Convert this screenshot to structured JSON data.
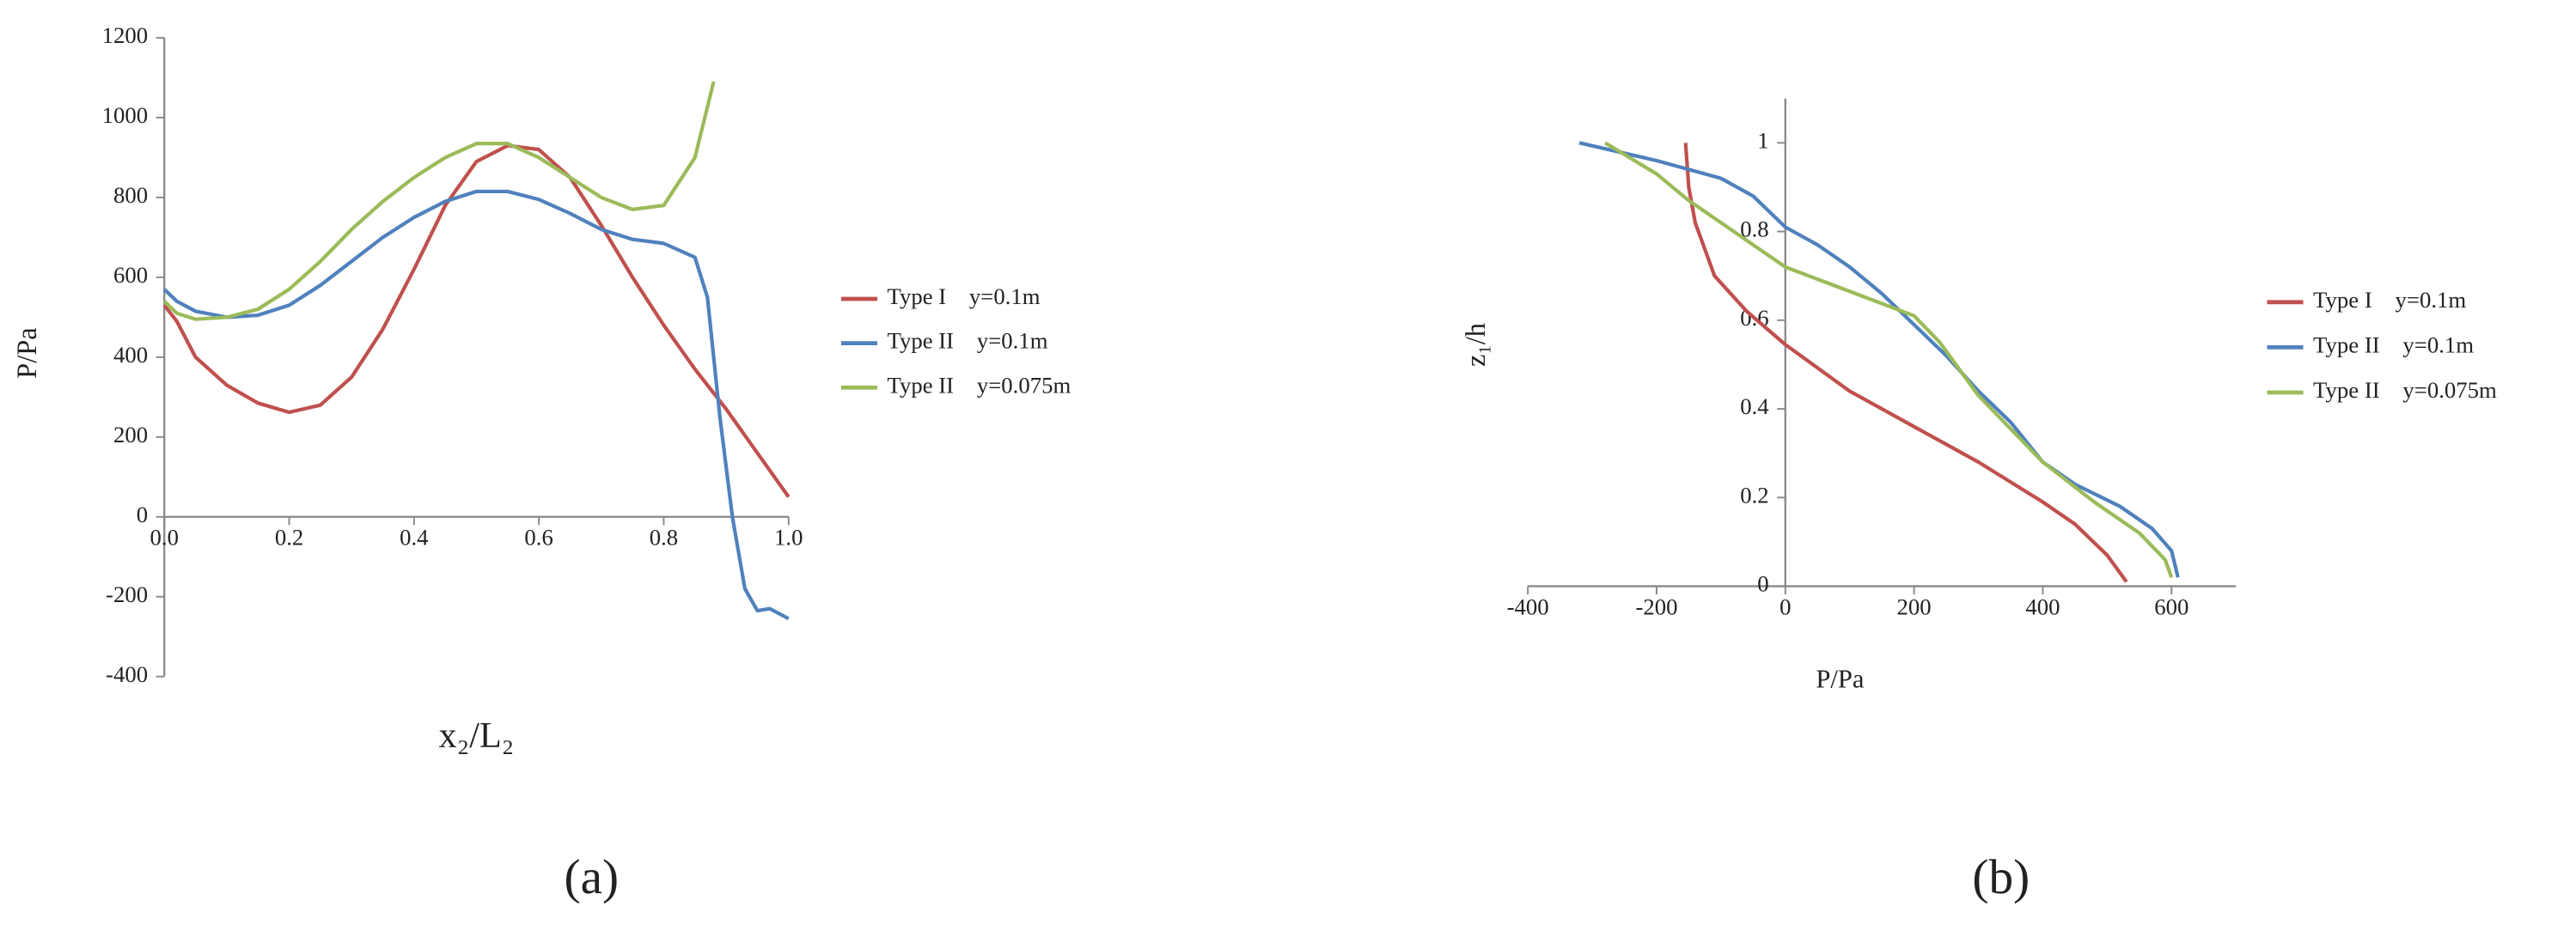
{
  "chart_data": [
    {
      "type": "line",
      "panel_label": "(a)",
      "x_label": "x₂/L₂",
      "y_label": "P/Pa",
      "xlim": [
        0,
        1
      ],
      "xticks": [
        {
          "value": 0,
          "label": "0.0"
        },
        0.2,
        0.4,
        0.6,
        0.8,
        {
          "value": 1,
          "label": "1.0"
        }
      ],
      "ylim": [
        -400,
        1200
      ],
      "yticks": [
        -400,
        -200,
        0,
        200,
        400,
        600,
        800,
        1000,
        1200
      ],
      "grid": false,
      "legend": "right",
      "series": [
        {
          "name": "Type I    y=0.1m",
          "color": "#c0504d",
          "x": [
            0,
            0.02,
            0.05,
            0.1,
            0.15,
            0.2,
            0.25,
            0.3,
            0.35,
            0.4,
            0.45,
            0.5,
            0.55,
            0.6,
            0.65,
            0.7,
            0.75,
            0.8,
            0.85,
            0.9,
            0.95,
            1.0
          ],
          "values": [
            530,
            490,
            400,
            330,
            285,
            262,
            280,
            350,
            470,
            620,
            780,
            890,
            930,
            920,
            850,
            730,
            600,
            480,
            370,
            270,
            160,
            50
          ]
        },
        {
          "name": "Type II    y=0.1m",
          "color": "#4f81bd",
          "x": [
            0,
            0.02,
            0.05,
            0.1,
            0.15,
            0.2,
            0.25,
            0.3,
            0.35,
            0.4,
            0.45,
            0.5,
            0.55,
            0.6,
            0.65,
            0.7,
            0.75,
            0.8,
            0.85,
            0.87,
            0.89,
            0.91,
            0.93,
            0.95,
            0.97,
            1.0
          ],
          "values": [
            570,
            540,
            515,
            500,
            505,
            530,
            580,
            640,
            700,
            750,
            790,
            815,
            815,
            795,
            760,
            720,
            695,
            685,
            650,
            550,
            250,
            0,
            -180,
            -235,
            -230,
            -255
          ]
        },
        {
          "name": "Type II    y=0.075m",
          "color": "#9bbb59",
          "x": [
            0,
            0.02,
            0.05,
            0.1,
            0.15,
            0.2,
            0.25,
            0.3,
            0.35,
            0.4,
            0.45,
            0.5,
            0.55,
            0.6,
            0.65,
            0.7,
            0.75,
            0.8,
            0.85,
            0.88
          ],
          "values": [
            540,
            510,
            495,
            500,
            520,
            570,
            640,
            720,
            790,
            850,
            900,
            935,
            935,
            900,
            850,
            800,
            770,
            780,
            900,
            1090
          ]
        }
      ]
    },
    {
      "type": "line",
      "panel_label": "(b)",
      "x_label": "P/Pa",
      "y_label": "z₁/h",
      "xlim": [
        -400,
        700
      ],
      "xticks": [
        -400,
        -200,
        0,
        200,
        400,
        600
      ],
      "ylim": [
        0,
        1.1
      ],
      "yticks": [
        0,
        0.2,
        0.4,
        0.6,
        0.8,
        1
      ],
      "grid": false,
      "legend": "right",
      "series": [
        {
          "name": "Type I    y=0.1m",
          "color": "#c0504d",
          "x": [
            -155,
            -150,
            -140,
            -110,
            -60,
            0,
            100,
            200,
            300,
            400,
            450,
            500,
            530
          ],
          "values": [
            1.0,
            0.9,
            0.82,
            0.7,
            0.62,
            0.545,
            0.44,
            0.36,
            0.28,
            0.19,
            0.14,
            0.07,
            0.01
          ]
        },
        {
          "name": "Type II    y=0.1m",
          "color": "#4f81bd",
          "x": [
            -320,
            -200,
            -100,
            -50,
            0,
            50,
            100,
            150,
            200,
            250,
            300,
            350,
            400,
            450,
            520,
            570,
            600,
            610
          ],
          "values": [
            1.0,
            0.96,
            0.92,
            0.88,
            0.81,
            0.77,
            0.72,
            0.66,
            0.59,
            0.52,
            0.44,
            0.37,
            0.28,
            0.23,
            0.18,
            0.13,
            0.08,
            0.02
          ]
        },
        {
          "name": "Type II    y=0.075m",
          "color": "#9bbb59",
          "x": [
            -280,
            -200,
            -150,
            -100,
            0,
            100,
            200,
            240,
            300,
            400,
            480,
            550,
            590,
            600
          ],
          "values": [
            1.0,
            0.93,
            0.87,
            0.82,
            0.72,
            0.665,
            0.61,
            0.55,
            0.43,
            0.28,
            0.19,
            0.12,
            0.06,
            0.02
          ]
        }
      ]
    }
  ]
}
